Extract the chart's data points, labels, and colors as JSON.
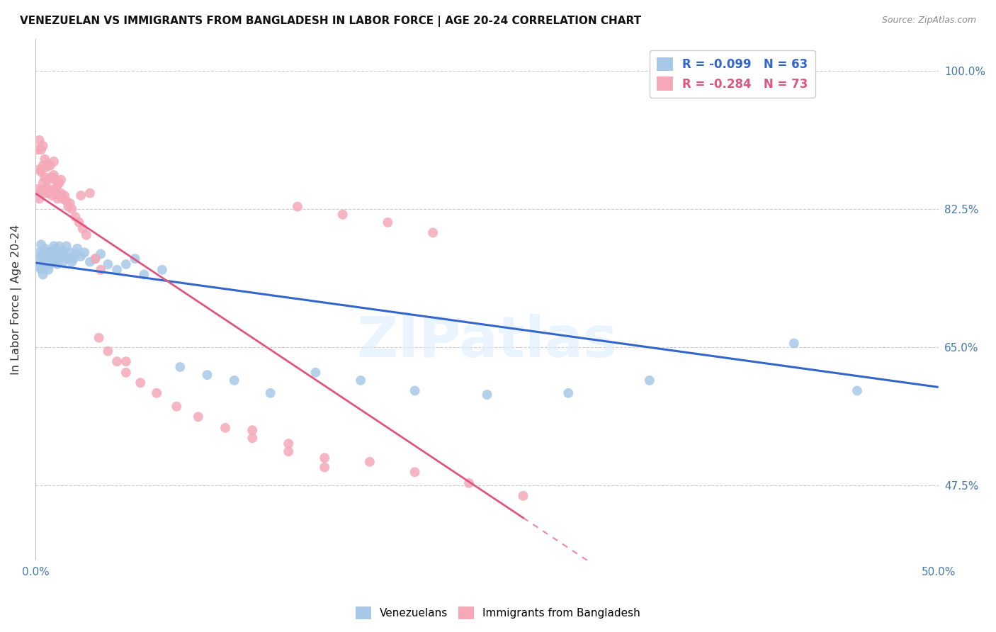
{
  "title": "VENEZUELAN VS IMMIGRANTS FROM BANGLADESH IN LABOR FORCE | AGE 20-24 CORRELATION CHART",
  "source": "Source: ZipAtlas.com",
  "ylabel": "In Labor Force | Age 20-24",
  "yticks": [
    "100.0%",
    "82.5%",
    "65.0%",
    "47.5%"
  ],
  "ytick_vals": [
    1.0,
    0.825,
    0.65,
    0.475
  ],
  "xlim": [
    0.0,
    0.5
  ],
  "ylim": [
    0.38,
    1.04
  ],
  "legend_r_blue": "R = -0.099",
  "legend_n_blue": "N = 63",
  "legend_r_pink": "R = -0.284",
  "legend_n_pink": "N = 73",
  "blue_color": "#a8c8e8",
  "pink_color": "#f4a8b8",
  "blue_line_color": "#3366cc",
  "pink_line_color": "#e05580",
  "watermark": "ZIPatlas",
  "venezuelans_x": [
    0.001,
    0.002,
    0.002,
    0.003,
    0.003,
    0.003,
    0.004,
    0.004,
    0.004,
    0.005,
    0.005,
    0.005,
    0.006,
    0.006,
    0.007,
    0.007,
    0.008,
    0.008,
    0.009,
    0.009,
    0.01,
    0.01,
    0.011,
    0.011,
    0.012,
    0.012,
    0.013,
    0.013,
    0.014,
    0.015,
    0.015,
    0.016,
    0.017,
    0.018,
    0.019,
    0.02,
    0.021,
    0.022,
    0.023,
    0.025,
    0.027,
    0.03,
    0.033,
    0.036,
    0.04,
    0.045,
    0.05,
    0.055,
    0.06,
    0.07,
    0.08,
    0.095,
    0.11,
    0.13,
    0.155,
    0.18,
    0.21,
    0.25,
    0.295,
    0.34,
    0.385,
    0.42,
    0.455
  ],
  "venezuelans_y": [
    0.758,
    0.77,
    0.752,
    0.748,
    0.765,
    0.78,
    0.742,
    0.755,
    0.768,
    0.75,
    0.762,
    0.775,
    0.758,
    0.77,
    0.762,
    0.748,
    0.755,
    0.768,
    0.76,
    0.772,
    0.778,
    0.765,
    0.762,
    0.775,
    0.755,
    0.77,
    0.778,
    0.762,
    0.768,
    0.758,
    0.772,
    0.765,
    0.778,
    0.762,
    0.77,
    0.758,
    0.762,
    0.768,
    0.775,
    0.765,
    0.77,
    0.758,
    0.762,
    0.768,
    0.755,
    0.748,
    0.755,
    0.762,
    0.742,
    0.748,
    0.625,
    0.615,
    0.608,
    0.592,
    0.618,
    0.608,
    0.595,
    0.59,
    0.592,
    0.608,
    1.0,
    0.655,
    0.595
  ],
  "bangladesh_x": [
    0.001,
    0.001,
    0.002,
    0.002,
    0.002,
    0.003,
    0.003,
    0.003,
    0.004,
    0.004,
    0.004,
    0.005,
    0.005,
    0.005,
    0.006,
    0.006,
    0.007,
    0.007,
    0.007,
    0.008,
    0.008,
    0.008,
    0.009,
    0.009,
    0.01,
    0.01,
    0.01,
    0.011,
    0.011,
    0.012,
    0.012,
    0.013,
    0.013,
    0.014,
    0.014,
    0.015,
    0.016,
    0.017,
    0.018,
    0.019,
    0.02,
    0.022,
    0.024,
    0.026,
    0.028,
    0.03,
    0.033,
    0.036,
    0.04,
    0.045,
    0.05,
    0.058,
    0.067,
    0.078,
    0.09,
    0.105,
    0.12,
    0.14,
    0.16,
    0.185,
    0.21,
    0.24,
    0.27,
    0.145,
    0.17,
    0.195,
    0.22,
    0.05,
    0.12,
    0.14,
    0.16,
    0.025,
    0.035
  ],
  "bangladesh_y": [
    0.85,
    0.9,
    0.838,
    0.875,
    0.912,
    0.848,
    0.872,
    0.9,
    0.858,
    0.88,
    0.905,
    0.845,
    0.865,
    0.888,
    0.852,
    0.878,
    0.845,
    0.862,
    0.882,
    0.848,
    0.865,
    0.88,
    0.842,
    0.865,
    0.85,
    0.868,
    0.885,
    0.845,
    0.862,
    0.838,
    0.855,
    0.842,
    0.858,
    0.845,
    0.862,
    0.838,
    0.842,
    0.835,
    0.828,
    0.832,
    0.825,
    0.815,
    0.808,
    0.8,
    0.792,
    0.845,
    0.762,
    0.748,
    0.645,
    0.632,
    0.618,
    0.605,
    0.592,
    0.575,
    0.562,
    0.548,
    0.535,
    0.518,
    0.498,
    0.505,
    0.492,
    0.478,
    0.462,
    0.828,
    0.818,
    0.808,
    0.795,
    0.632,
    0.545,
    0.528,
    0.51,
    0.842,
    0.662
  ]
}
